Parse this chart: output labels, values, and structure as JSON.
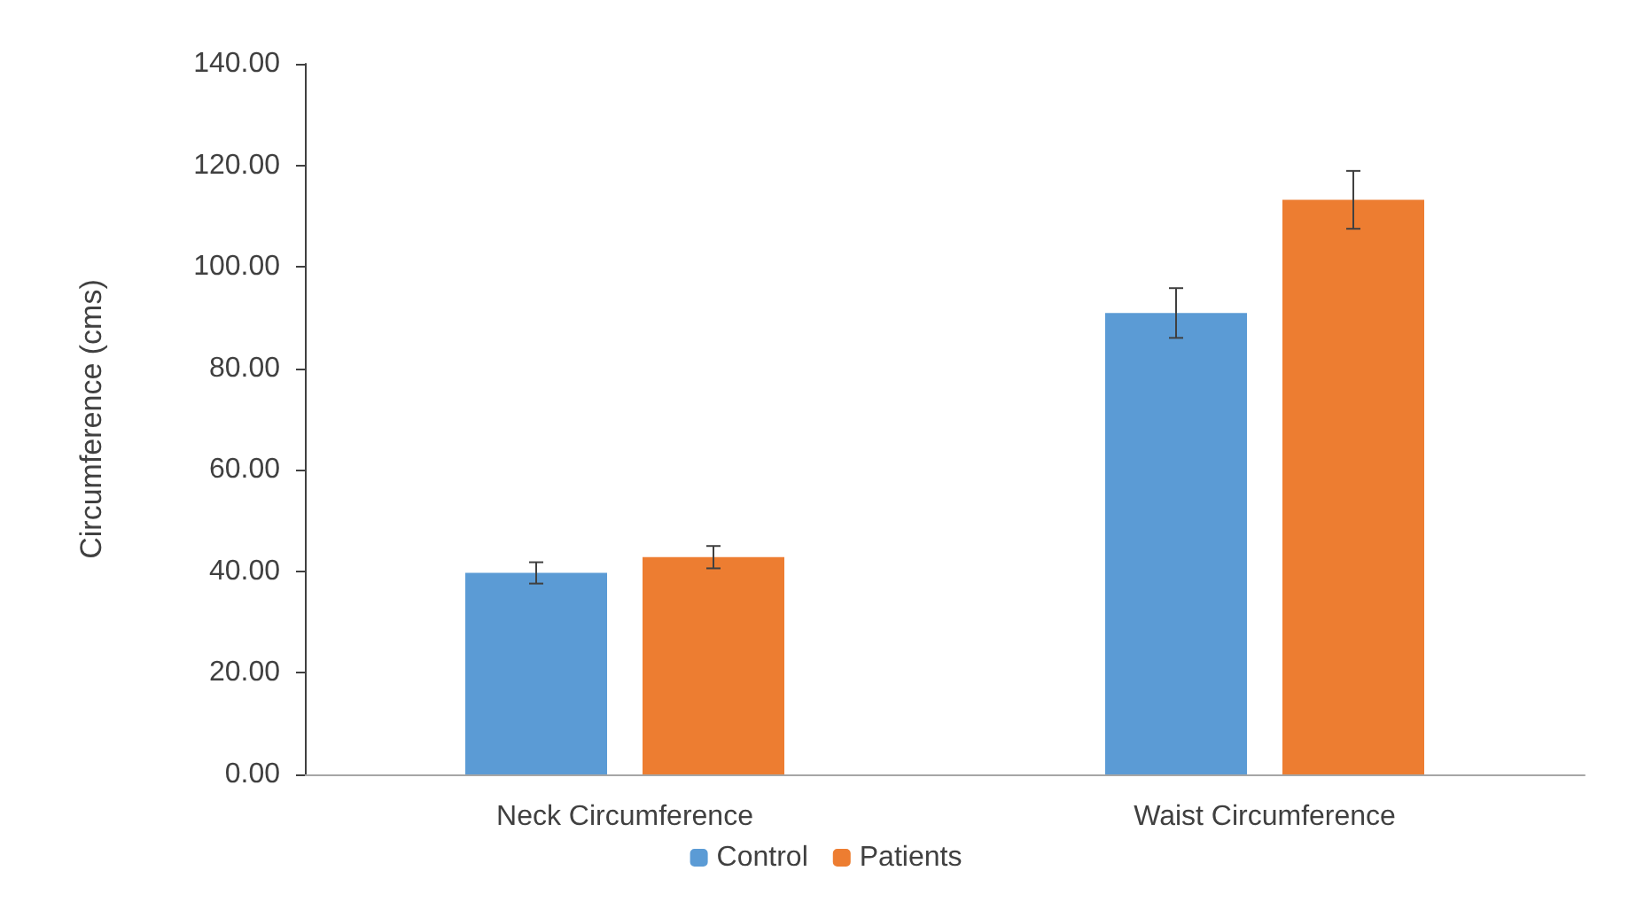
{
  "chart_data": {
    "type": "bar",
    "ylabel": "Circumference (cms)",
    "categories": [
      "Neck Circumference",
      "Waist Circumference"
    ],
    "series": [
      {
        "name": "Control",
        "color": "#5b9bd5",
        "values": [
          39.7,
          90.9
        ],
        "errors": [
          2.1,
          4.9
        ]
      },
      {
        "name": "Patients",
        "color": "#ed7d31",
        "values": [
          42.8,
          113.2
        ],
        "errors": [
          2.2,
          5.7
        ]
      }
    ],
    "ylim": [
      0,
      140
    ],
    "yticks": [
      {
        "value": 0,
        "label": "0.00"
      },
      {
        "value": 20,
        "label": "20.00"
      },
      {
        "value": 40,
        "label": "40.00"
      },
      {
        "value": 60,
        "label": "60.00"
      },
      {
        "value": 80,
        "label": "80.00"
      },
      {
        "value": 100,
        "label": "100.00"
      },
      {
        "value": 120,
        "label": "120.00"
      },
      {
        "value": 140,
        "label": "140.00"
      }
    ],
    "grid": false,
    "legend": "bottom"
  }
}
